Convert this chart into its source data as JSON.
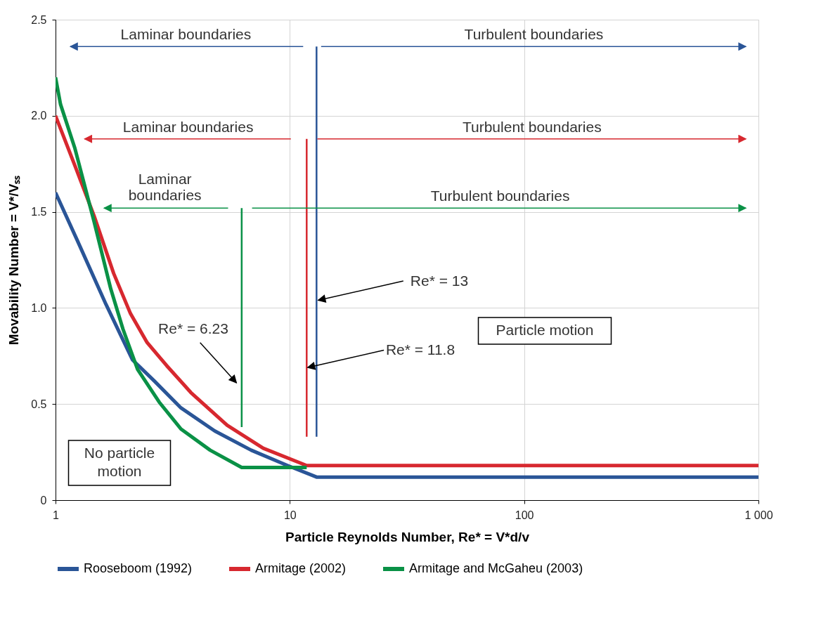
{
  "chart_data": {
    "type": "line",
    "xlabel": "Particle Reynolds Number, Re* = V*d/v",
    "ylabel": "Movability Number = V*/Vₛₛ",
    "log": "x",
    "xlim": [
      1,
      1000
    ],
    "xticks": [
      1,
      10,
      100,
      {
        "value": 1000,
        "label": "1 000"
      }
    ],
    "ylim": [
      0,
      2.5
    ],
    "yticks": [
      {
        "value": 0,
        "label": "0"
      },
      0.5,
      {
        "value": 1,
        "label": "1.0"
      },
      1.5,
      {
        "value": 2,
        "label": "2.0"
      },
      2.5
    ],
    "grid": true,
    "legend": "bottom",
    "series": [
      {
        "name": "Rooseboom (1992)",
        "color": "#2a5597",
        "x": [
          1,
          1.24,
          1.64,
          2.13,
          2.64,
          3.43,
          4.78,
          6.84,
          9.78,
          12.4,
          13,
          1000
        ],
        "values": [
          1.6,
          1.35,
          1.02,
          0.73,
          0.62,
          0.48,
          0.36,
          0.26,
          0.18,
          0.13,
          0.12,
          0.12
        ]
      },
      {
        "name": "Armitage (2002)",
        "color": "#d7282f",
        "x": [
          1,
          1.21,
          1.46,
          1.77,
          2.09,
          2.46,
          2.98,
          3.78,
          5.4,
          7.7,
          11.8,
          1000
        ],
        "values": [
          2.0,
          1.74,
          1.48,
          1.18,
          0.97,
          0.82,
          0.7,
          0.56,
          0.39,
          0.27,
          0.18,
          0.18
        ]
      },
      {
        "name": "Armitage and McGaheu (2003)",
        "color": "#0a9146",
        "x": [
          1,
          1.05,
          1.21,
          1.46,
          1.72,
          1.94,
          2.24,
          2.77,
          3.43,
          4.57,
          6.23,
          11.8
        ],
        "values": [
          2.2,
          2.06,
          1.83,
          1.45,
          1.1,
          0.89,
          0.68,
          0.51,
          0.37,
          0.26,
          0.17,
          0.17
        ]
      },
      {
        "color": "#0a9146",
        "x": [
          6.23,
          6.23
        ],
        "values": [
          0.38,
          1.52
        ]
      },
      {
        "color": "#d7282f",
        "x": [
          11.8,
          11.8
        ],
        "values": [
          0.33,
          1.88
        ]
      },
      {
        "color": "#2a5597",
        "x": [
          13,
          13
        ],
        "values": [
          0.33,
          2.36
        ]
      },
      {
        "color": "#2a5597",
        "x": [
          11.4,
          1.156
        ],
        "values": [
          2.36,
          2.36
        ]
      },
      {
        "color": "#2a5597",
        "x": [
          13.6,
          884
        ],
        "values": [
          2.36,
          2.36
        ]
      },
      {
        "color": "#d7282f",
        "x": [
          10.1,
          1.33
        ],
        "values": [
          1.88,
          1.88
        ]
      },
      {
        "color": "#d7282f",
        "x": [
          13.1,
          884
        ],
        "values": [
          1.88,
          1.88
        ]
      },
      {
        "color": "#0a9146",
        "x": [
          5.45,
          1.61
        ],
        "values": [
          1.52,
          1.52
        ]
      },
      {
        "color": "#0a9146",
        "x": [
          6.9,
          884
        ],
        "values": [
          1.52,
          1.52
        ]
      },
      {
        "color": "#000000",
        "x": [
          30.5,
          13.2
        ],
        "values": [
          1.14,
          1.04
        ]
      },
      {
        "color": "#000000",
        "x": [
          25.2,
          11.9
        ],
        "values": [
          0.78,
          0.69
        ]
      },
      {
        "color": "#000000",
        "x": [
          4.14,
          5.92
        ],
        "values": [
          0.82,
          0.61
        ]
      }
    ],
    "annotations": [
      {
        "text": "Laminar boundaries",
        "x": 3.6,
        "y": 2.36
      },
      {
        "text": "Turbulent boundaries",
        "x": 110,
        "y": 2.36
      },
      {
        "text": "Laminar boundaries",
        "x": 3.68,
        "y": 1.88
      },
      {
        "text": "Turbulent boundaries",
        "x": 108,
        "y": 1.88
      },
      {
        "text": "Laminar\nboundaries",
        "x": 2.93,
        "y": 1.52
      },
      {
        "text": "Turbulent boundaries",
        "x": 79,
        "y": 1.52
      },
      "Re* = 13",
      "Re* = 11.8",
      "Re* = 6.23",
      "No particle\nmotion",
      "Particle motion"
    ]
  }
}
